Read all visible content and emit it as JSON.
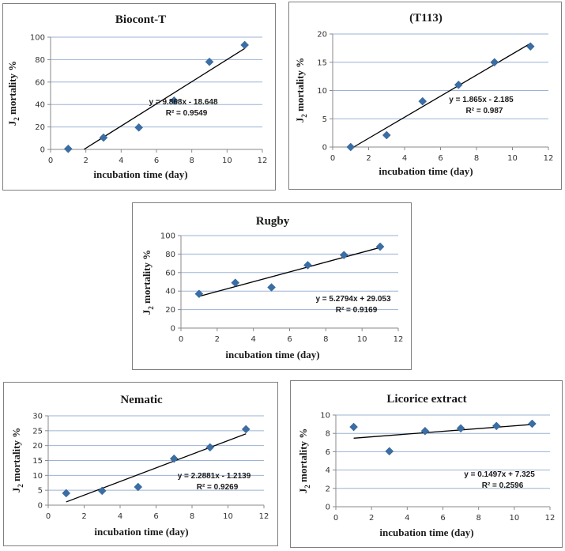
{
  "chart_data": [
    {
      "type": "scatter",
      "title": "Biocont-T",
      "xlabel": "incubation time (day)",
      "ylabel_main": "J",
      "ylabel_sub": "2",
      "ylabel_rest": " mortality %",
      "x": [
        1,
        3,
        5,
        7,
        9,
        11
      ],
      "y": [
        0.5,
        10.5,
        19.5,
        43.5,
        78,
        93
      ],
      "xlim": [
        0,
        12
      ],
      "ylim": [
        0,
        100
      ],
      "xticks": [
        0,
        2,
        4,
        6,
        8,
        10,
        12
      ],
      "yticks": [
        0,
        20,
        40,
        60,
        80,
        100
      ],
      "grid": true,
      "trendline": {
        "slope": 9.868,
        "intercept": -18.648,
        "equation": "y = 9.868x - 18.648",
        "r2_label": "R² = 0.9549"
      },
      "point_color": "#3a6ea5"
    },
    {
      "type": "scatter",
      "title": "(T113)",
      "xlabel": "incubation time (day)",
      "ylabel_main": "J",
      "ylabel_sub": "2",
      "ylabel_rest": " mortality %",
      "x": [
        1,
        3,
        5,
        7,
        9,
        11
      ],
      "y": [
        0,
        2.1,
        8.1,
        11,
        15,
        17.8
      ],
      "xlim": [
        0,
        12
      ],
      "ylim": [
        0,
        20
      ],
      "xticks": [
        0,
        2,
        4,
        6,
        8,
        10,
        12
      ],
      "yticks": [
        0,
        5,
        10,
        15,
        20
      ],
      "grid": true,
      "trendline": {
        "slope": 1.865,
        "intercept": -2.185,
        "equation": "y = 1.865x - 2.185",
        "r2_label": "R² = 0.987"
      },
      "point_color": "#3a6ea5"
    },
    {
      "type": "scatter",
      "title": "Rugby",
      "xlabel": "incubation time (day)",
      "ylabel_main": "J",
      "ylabel_sub": "2",
      "ylabel_rest": " mortality %",
      "x": [
        1,
        3,
        5,
        7,
        9,
        11
      ],
      "y": [
        37,
        49,
        44,
        68,
        79,
        88
      ],
      "xlim": [
        0,
        12
      ],
      "ylim": [
        0,
        100
      ],
      "xticks": [
        0,
        2,
        4,
        6,
        8,
        10,
        12
      ],
      "yticks": [
        0,
        20,
        40,
        60,
        80,
        100
      ],
      "grid": true,
      "trendline": {
        "slope": 5.2794,
        "intercept": 29.053,
        "equation": "y = 5.2794x + 29.053",
        "r2_label": "R² = 0.9169"
      },
      "point_color": "#3a6ea5"
    },
    {
      "type": "scatter",
      "title": "Nematic",
      "xlabel": "incubation time (day)",
      "ylabel_main": "J",
      "ylabel_sub": "2",
      "ylabel_rest": " mortality %",
      "x": [
        1,
        3,
        5,
        7,
        9,
        11
      ],
      "y": [
        4,
        4.8,
        6.1,
        15.6,
        19.4,
        25.5
      ],
      "xlim": [
        0,
        12
      ],
      "ylim": [
        0,
        30
      ],
      "xticks": [
        0,
        2,
        4,
        6,
        8,
        10,
        12
      ],
      "yticks": [
        0,
        5,
        10,
        15,
        20,
        25,
        30
      ],
      "grid": true,
      "trendline": {
        "slope": 2.2881,
        "intercept": -1.2139,
        "equation": "y = 2.2881x - 1.2139",
        "r2_label": "R² = 0.9269"
      },
      "point_color": "#3a6ea5"
    },
    {
      "type": "scatter",
      "title": "Licorice  extract",
      "xlabel": "incubation time (day)",
      "ylabel_main": "J",
      "ylabel_sub": "2",
      "ylabel_rest": " mortality %",
      "x": [
        1,
        3,
        5,
        7,
        9,
        11
      ],
      "y": [
        8.7,
        6.05,
        8.25,
        8.55,
        8.8,
        9.05
      ],
      "xlim": [
        0,
        12
      ],
      "ylim": [
        0,
        10
      ],
      "xticks": [
        0,
        2,
        4,
        6,
        8,
        10,
        12
      ],
      "yticks": [
        0,
        2,
        4,
        6,
        8,
        10
      ],
      "grid": true,
      "trendline": {
        "slope": 0.1497,
        "intercept": 7.325,
        "equation": "y = 0.1497x + 7.325",
        "r2_label": "R² = 0.2596"
      },
      "point_color": "#3a6ea5"
    }
  ]
}
